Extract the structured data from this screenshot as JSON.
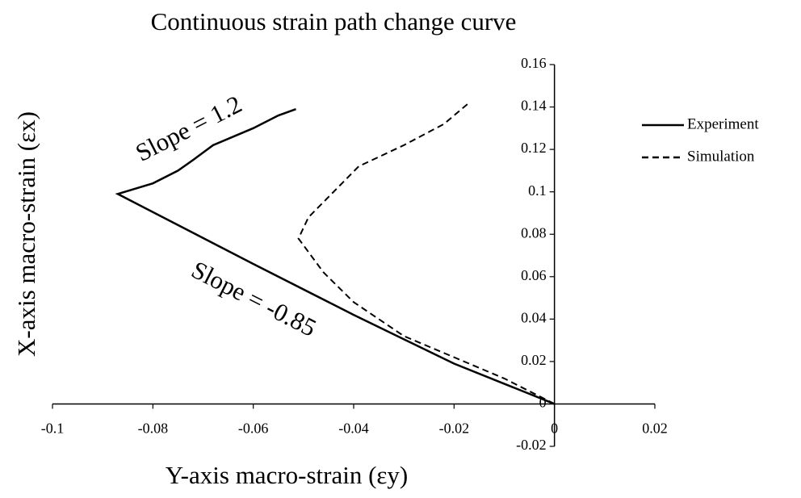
{
  "chart_data": {
    "type": "line",
    "title": "Continuous strain path change curve",
    "xlabel": "Y-axis macro-strain (εy)",
    "ylabel": "X-axis macro-strain (εx)",
    "xlim": [
      -0.1,
      0.02
    ],
    "xticks": [
      -0.1,
      -0.08,
      -0.06,
      -0.04,
      -0.02,
      0,
      0.02
    ],
    "ylim": [
      -0.02,
      0.16
    ],
    "yticks": [
      -0.02,
      0,
      0.02,
      0.04,
      0.06,
      0.08,
      0.1,
      0.12,
      0.14,
      0.16
    ],
    "legend": "right",
    "annotations": [
      "Slope = 1.2",
      "Slope = -0.85"
    ],
    "series": [
      {
        "name": "Experiment",
        "color": "#000000",
        "dash": false,
        "x": [
          0,
          -0.02,
          -0.04,
          -0.06,
          -0.087,
          -0.08,
          -0.075,
          -0.072,
          -0.068,
          -0.06,
          -0.055,
          -0.0515
        ],
        "values": [
          0,
          0.019,
          0.042,
          0.066,
          0.099,
          0.104,
          0.11,
          0.115,
          0.122,
          0.13,
          0.136,
          0.139
        ]
      },
      {
        "name": "Simulation",
        "color": "#000000",
        "dash": true,
        "x": [
          0,
          -0.01,
          -0.02,
          -0.03,
          -0.04,
          -0.046,
          -0.051,
          -0.049,
          -0.044,
          -0.039,
          -0.03,
          -0.022,
          -0.017
        ],
        "values": [
          0,
          0.012,
          0.022,
          0.032,
          0.048,
          0.062,
          0.078,
          0.088,
          0.1,
          0.112,
          0.122,
          0.132,
          0.142
        ]
      }
    ]
  }
}
